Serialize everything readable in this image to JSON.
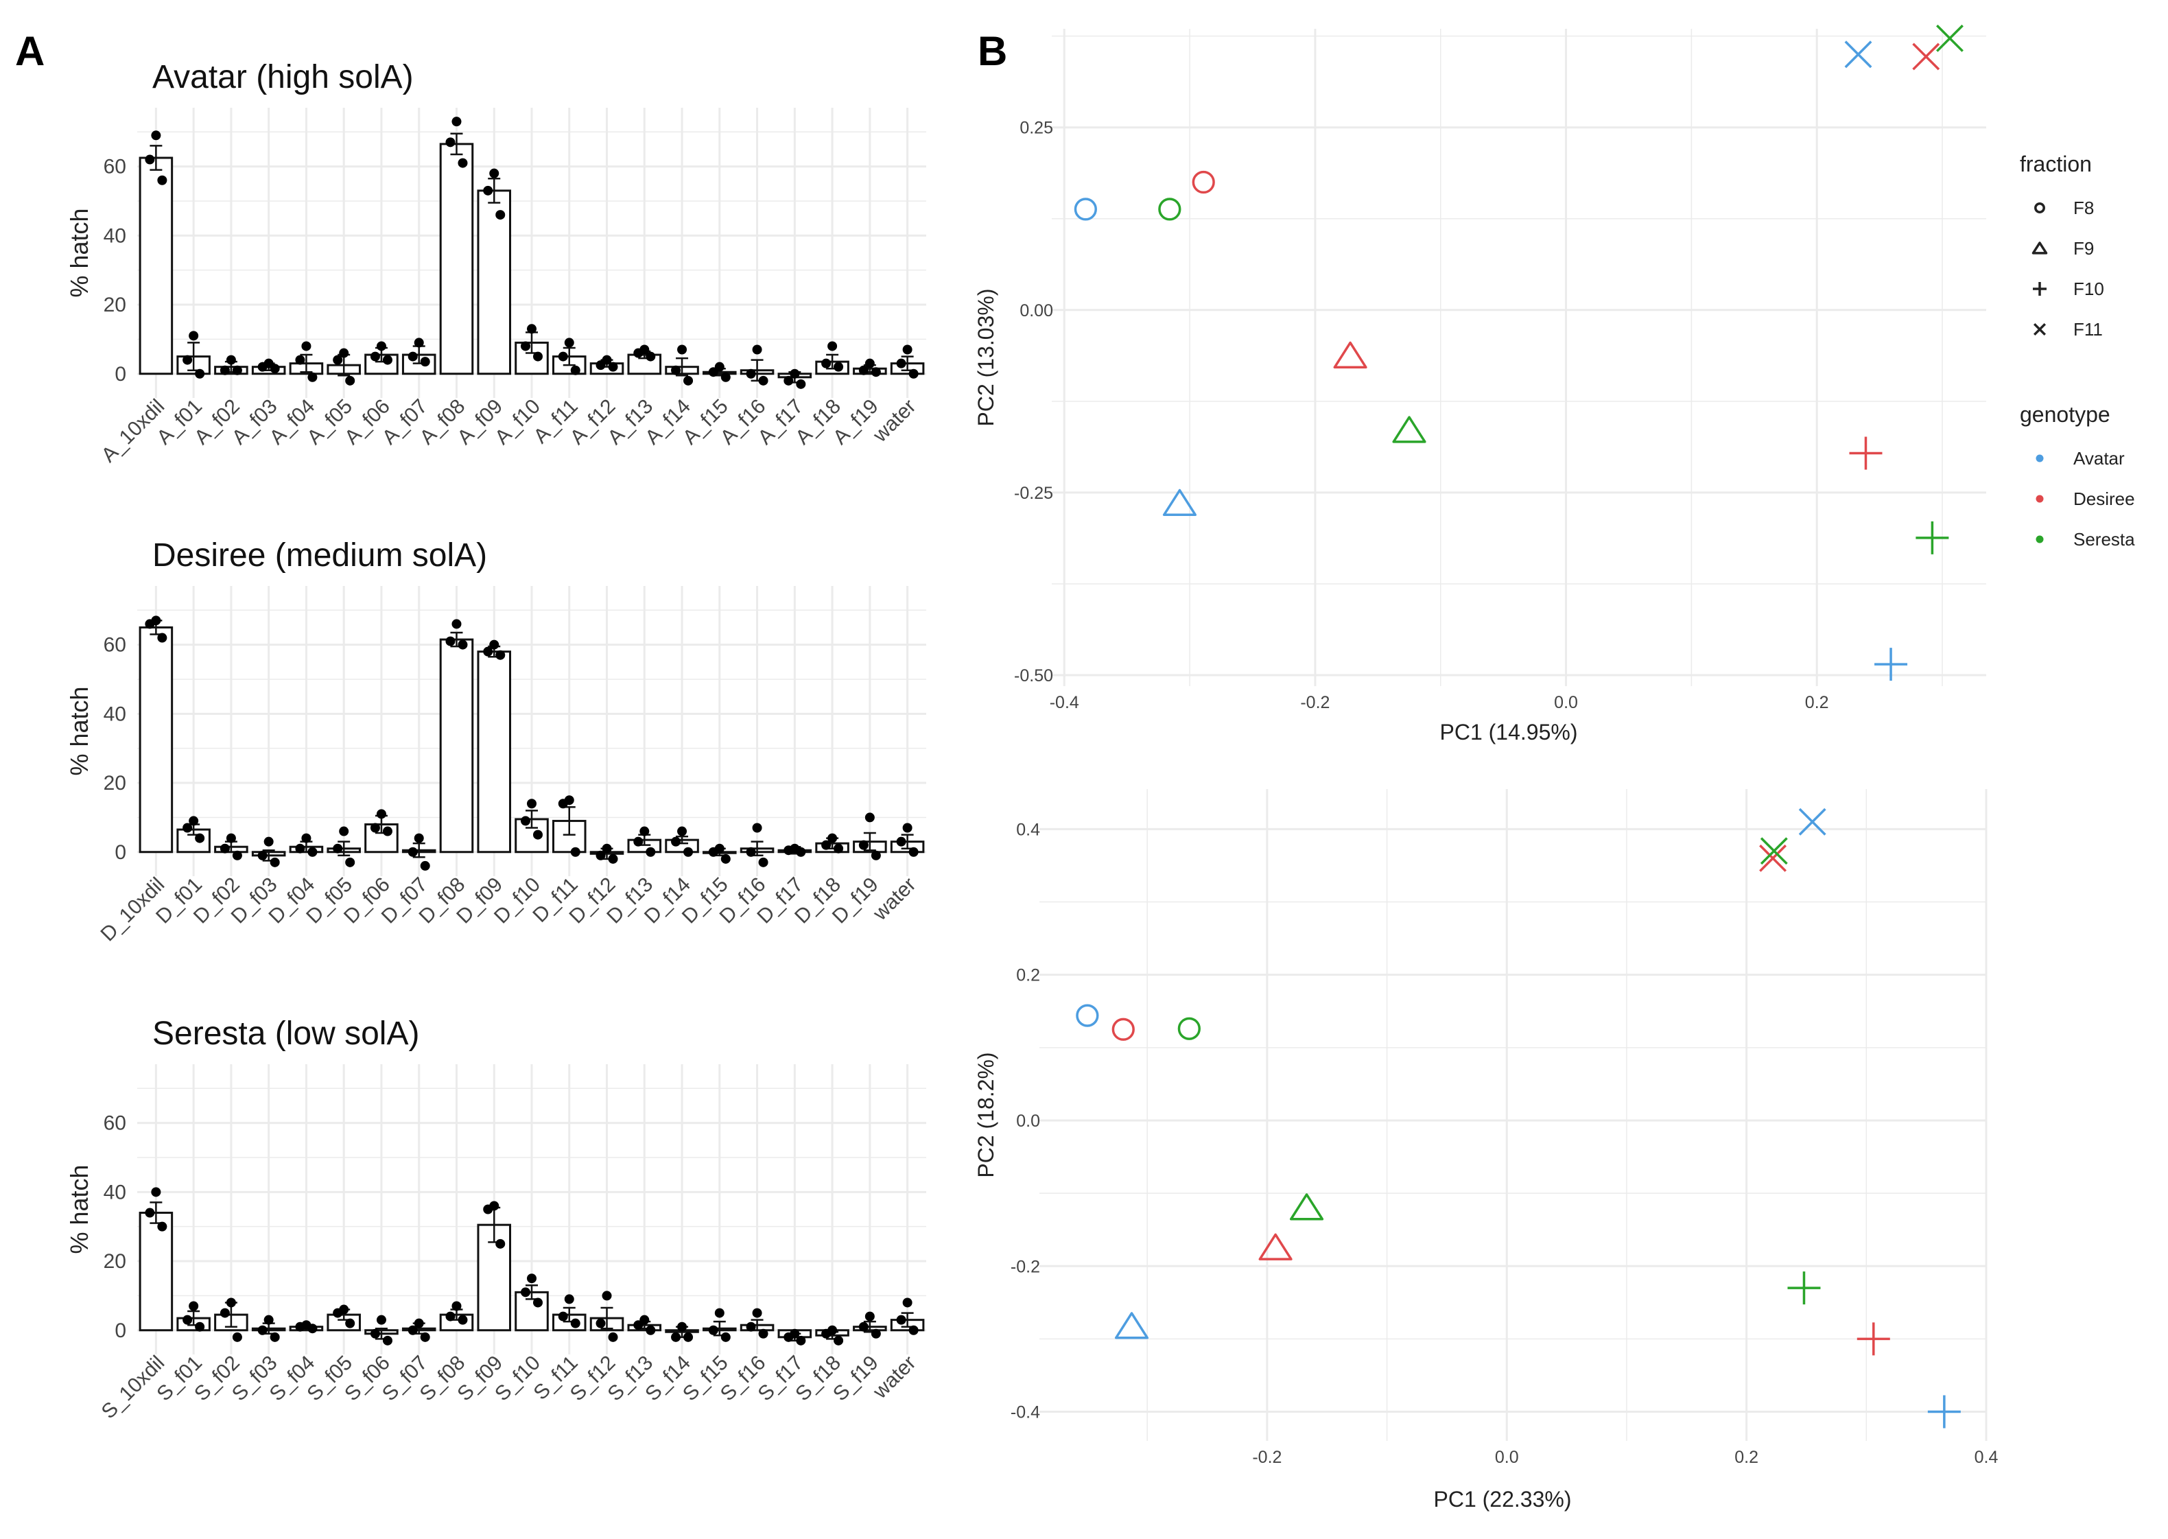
{
  "panel_labels": [
    "A",
    "B"
  ],
  "colors": {
    "Avatar": "#4d9de0",
    "Desiree": "#e0484b",
    "Seresta": "#2aa52a",
    "bar_fill": "#ffffff",
    "bar_stroke": "#111111",
    "grid": "#ebebeb",
    "point": "#000000"
  },
  "legend": {
    "fraction": {
      "title": "fraction",
      "items": [
        {
          "label": "F8",
          "shape": "circle"
        },
        {
          "label": "F9",
          "shape": "triangle"
        },
        {
          "label": "F10",
          "shape": "plus"
        },
        {
          "label": "F11",
          "shape": "cross"
        }
      ]
    },
    "genotype": {
      "title": "genotype",
      "items": [
        {
          "label": "Avatar"
        },
        {
          "label": "Desiree"
        },
        {
          "label": "Seresta"
        }
      ]
    }
  },
  "chart_data": [
    {
      "type": "bar",
      "id": "avatar",
      "title": "Avatar (high solA)",
      "ylabel": "% hatch",
      "ylim": [
        -7,
        77
      ],
      "yticks": [
        0,
        20,
        40,
        60
      ],
      "categories": [
        "A_10xdil",
        "A_f01",
        "A_f02",
        "A_f03",
        "A_f04",
        "A_f05",
        "A_f06",
        "A_f07",
        "A_f08",
        "A_f09",
        "A_f10",
        "A_f11",
        "A_f12",
        "A_f13",
        "A_f14",
        "A_f15",
        "A_f16",
        "A_f17",
        "A_f18",
        "A_f19",
        "water"
      ],
      "values": [
        62.5,
        5,
        2,
        2,
        3,
        2.5,
        5.5,
        5.5,
        66.5,
        53,
        9,
        5,
        3,
        5.5,
        2,
        0.5,
        1,
        -1,
        3.5,
        1.5,
        3
      ],
      "errors": [
        3.5,
        4,
        1.5,
        1,
        2.5,
        3,
        2,
        2.5,
        3,
        3.5,
        3,
        2.5,
        1,
        1,
        2.5,
        1,
        3,
        1.5,
        2,
        1,
        2
      ],
      "replicates": [
        [
          69,
          62,
          56
        ],
        [
          11,
          4,
          0
        ],
        [
          4,
          1,
          1
        ],
        [
          3,
          2,
          1.5
        ],
        [
          8,
          4,
          -1
        ],
        [
          6,
          4,
          -2
        ],
        [
          8,
          5,
          4
        ],
        [
          9,
          5,
          3.5
        ],
        [
          73,
          67,
          61
        ],
        [
          58,
          53,
          46
        ],
        [
          13,
          8,
          5
        ],
        [
          9,
          5,
          1
        ],
        [
          4,
          2.5,
          2
        ],
        [
          7,
          6,
          5
        ],
        [
          7,
          1,
          -2
        ],
        [
          2,
          0.5,
          -1
        ],
        [
          7,
          0,
          -2
        ],
        [
          0,
          -2,
          -3
        ],
        [
          8,
          3,
          2
        ],
        [
          3,
          1,
          0.5
        ],
        [
          7,
          3,
          0
        ]
      ]
    },
    {
      "type": "bar",
      "id": "desiree",
      "title": "Desiree (medium solA)",
      "ylabel": "% hatch",
      "ylim": [
        -7,
        77
      ],
      "yticks": [
        0,
        20,
        40,
        60
      ],
      "categories": [
        "D_10xdil",
        "D_f01",
        "D_f02",
        "D_f03",
        "D_f04",
        "D_f05",
        "D_f06",
        "D_f07",
        "D_f08",
        "D_f09",
        "D_f10",
        "D_f11",
        "D_f12",
        "D_f13",
        "D_f14",
        "D_f15",
        "D_f16",
        "D_f17",
        "D_f18",
        "D_f19",
        "water"
      ],
      "values": [
        65,
        6.5,
        1.5,
        -1,
        1.5,
        1,
        8,
        0.5,
        61.5,
        58,
        9.5,
        9,
        -0.5,
        3.5,
        3.5,
        0,
        1,
        0.5,
        2.5,
        3,
        3
      ],
      "errors": [
        2,
        1.5,
        1.5,
        1.5,
        1.5,
        2,
        2.5,
        2,
        2,
        1.5,
        2.5,
        4,
        1.5,
        1.5,
        1,
        1,
        2,
        1,
        1.5,
        2.5,
        2
      ],
      "replicates": [
        [
          67,
          66,
          62
        ],
        [
          9,
          7,
          4
        ],
        [
          4,
          1,
          -1
        ],
        [
          3,
          -1,
          -3
        ],
        [
          4,
          1,
          0
        ],
        [
          6,
          1,
          -3
        ],
        [
          11,
          7,
          6
        ],
        [
          4,
          0,
          -4
        ],
        [
          66,
          61,
          60
        ],
        [
          60,
          58,
          57
        ],
        [
          14,
          9,
          5
        ],
        [
          15,
          14,
          0
        ],
        [
          1,
          -1,
          -2
        ],
        [
          6,
          3,
          0
        ],
        [
          6,
          3,
          0
        ],
        [
          1,
          0,
          -2
        ],
        [
          7,
          0,
          -3
        ],
        [
          1,
          0.5,
          0
        ],
        [
          4,
          2,
          1
        ],
        [
          10,
          2,
          -1
        ],
        [
          7,
          3,
          0
        ]
      ]
    },
    {
      "type": "bar",
      "id": "seresta",
      "title": "Seresta (low solA)",
      "ylabel": "% hatch",
      "ylim": [
        -7,
        77
      ],
      "yticks": [
        0,
        20,
        40,
        60
      ],
      "categories": [
        "S_10xdil",
        "S_f01",
        "S_f02",
        "S_f03",
        "S_f04",
        "S_f05",
        "S_f06",
        "S_f07",
        "S_f08",
        "S_f09",
        "S_f10",
        "S_f11",
        "S_f12",
        "S_f13",
        "S_f14",
        "S_f15",
        "S_f16",
        "S_f17",
        "S_f18",
        "S_f19",
        "water"
      ],
      "values": [
        34,
        3.5,
        4.5,
        0.5,
        1,
        4.5,
        -1,
        0.5,
        4.5,
        30.5,
        11,
        4.5,
        3.5,
        1.5,
        -0.5,
        0.5,
        1.5,
        -2,
        -1.5,
        1,
        3
      ],
      "errors": [
        3,
        2,
        3.5,
        1.5,
        0.5,
        1.5,
        1.5,
        1.5,
        1.5,
        5,
        2,
        2,
        3,
        1,
        1.5,
        2,
        1.5,
        1,
        1,
        1.5,
        2
      ],
      "replicates": [
        [
          40,
          34,
          30
        ],
        [
          7,
          3,
          1
        ],
        [
          8,
          5,
          -2
        ],
        [
          3,
          0,
          -2
        ],
        [
          1.5,
          1,
          0.5
        ],
        [
          6,
          5,
          2
        ],
        [
          3,
          -1,
          -3
        ],
        [
          2,
          0,
          -2
        ],
        [
          7,
          4,
          3
        ],
        [
          36,
          35,
          25
        ],
        [
          15,
          11,
          8
        ],
        [
          9,
          4,
          2
        ],
        [
          10,
          2,
          -2
        ],
        [
          3,
          1.5,
          0
        ],
        [
          1,
          -2,
          -2
        ],
        [
          5,
          0,
          -2
        ],
        [
          5,
          1,
          -1
        ],
        [
          -1,
          -2,
          -3
        ],
        [
          0,
          -1,
          -3
        ],
        [
          4,
          1,
          -1
        ],
        [
          8,
          3,
          0
        ]
      ]
    },
    {
      "type": "scatter",
      "id": "pca_top",
      "xlabel": "PC1 (14.95%)",
      "ylabel": "PC2 (13.03%)",
      "xlim": [
        -0.41,
        0.335
      ],
      "ylim": [
        -0.515,
        0.385
      ],
      "xticks": [
        -0.4,
        -0.2,
        0.0,
        0.2
      ],
      "xtick_labels": [
        "-0.4",
        "-0.2",
        "0.0",
        "0.2"
      ],
      "yticks": [
        -0.5,
        -0.25,
        0.0,
        0.25
      ],
      "ytick_labels": [
        "-0.50",
        "-0.25",
        "0.00",
        "0.25"
      ],
      "points": [
        {
          "genotype": "Avatar",
          "fraction": "F8",
          "x": -0.383,
          "y": 0.138
        },
        {
          "genotype": "Desiree",
          "fraction": "F8",
          "x": -0.289,
          "y": 0.175
        },
        {
          "genotype": "Seresta",
          "fraction": "F8",
          "x": -0.316,
          "y": 0.138
        },
        {
          "genotype": "Avatar",
          "fraction": "F9",
          "x": -0.308,
          "y": -0.265
        },
        {
          "genotype": "Desiree",
          "fraction": "F9",
          "x": -0.172,
          "y": -0.063
        },
        {
          "genotype": "Seresta",
          "fraction": "F9",
          "x": -0.125,
          "y": -0.165
        },
        {
          "genotype": "Avatar",
          "fraction": "F10",
          "x": 0.259,
          "y": -0.485
        },
        {
          "genotype": "Desiree",
          "fraction": "F10",
          "x": 0.239,
          "y": -0.196
        },
        {
          "genotype": "Seresta",
          "fraction": "F10",
          "x": 0.292,
          "y": -0.312
        },
        {
          "genotype": "Avatar",
          "fraction": "F11",
          "x": 0.233,
          "y": 0.35
        },
        {
          "genotype": "Desiree",
          "fraction": "F11",
          "x": 0.287,
          "y": 0.347
        },
        {
          "genotype": "Seresta",
          "fraction": "F11",
          "x": 0.306,
          "y": 0.372
        }
      ]
    },
    {
      "type": "scatter",
      "id": "pca_bottom",
      "xlabel": "PC1 (22.33%)",
      "ylabel": "PC2 (18.2%)",
      "xlim": [
        -0.39,
        0.4
      ],
      "ylim": [
        -0.44,
        0.455
      ],
      "xticks": [
        -0.2,
        0.0,
        0.2,
        0.4
      ],
      "xtick_labels": [
        "-0.2",
        "0.0",
        "0.2",
        "0.4"
      ],
      "yticks": [
        -0.4,
        -0.2,
        0.0,
        0.2,
        0.4
      ],
      "ytick_labels": [
        "-0.4",
        "-0.2",
        "0.0",
        "0.2",
        "0.4"
      ],
      "points": [
        {
          "genotype": "Avatar",
          "fraction": "F8",
          "x": -0.35,
          "y": 0.144
        },
        {
          "genotype": "Desiree",
          "fraction": "F8",
          "x": -0.32,
          "y": 0.125
        },
        {
          "genotype": "Seresta",
          "fraction": "F8",
          "x": -0.265,
          "y": 0.126
        },
        {
          "genotype": "Avatar",
          "fraction": "F9",
          "x": -0.313,
          "y": -0.283
        },
        {
          "genotype": "Desiree",
          "fraction": "F9",
          "x": -0.193,
          "y": -0.175
        },
        {
          "genotype": "Seresta",
          "fraction": "F9",
          "x": -0.167,
          "y": -0.12
        },
        {
          "genotype": "Avatar",
          "fraction": "F10",
          "x": 0.365,
          "y": -0.4
        },
        {
          "genotype": "Desiree",
          "fraction": "F10",
          "x": 0.306,
          "y": -0.3
        },
        {
          "genotype": "Seresta",
          "fraction": "F10",
          "x": 0.248,
          "y": -0.23
        },
        {
          "genotype": "Avatar",
          "fraction": "F11",
          "x": 0.255,
          "y": 0.41
        },
        {
          "genotype": "Desiree",
          "fraction": "F11",
          "x": 0.222,
          "y": 0.36
        },
        {
          "genotype": "Seresta",
          "fraction": "F11",
          "x": 0.223,
          "y": 0.37
        }
      ]
    }
  ]
}
